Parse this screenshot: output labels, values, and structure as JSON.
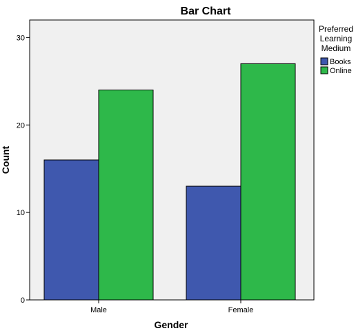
{
  "chart_data": {
    "type": "bar",
    "title": "Bar Chart",
    "xlabel": "Gender",
    "ylabel": "Count",
    "categories": [
      "Male",
      "Female"
    ],
    "series": [
      {
        "name": "Books",
        "values": [
          16,
          13
        ],
        "color": "#3F58AE"
      },
      {
        "name": "Online",
        "values": [
          24,
          27
        ],
        "color": "#2EB84A"
      }
    ],
    "ylim": [
      0,
      32
    ],
    "yticks": [
      0,
      10,
      20,
      30
    ],
    "grid": false,
    "legend": {
      "title_lines": [
        "Preferred",
        "Learning",
        "Medium"
      ],
      "placement": "right"
    },
    "plot_background": "#F0F0F0"
  }
}
